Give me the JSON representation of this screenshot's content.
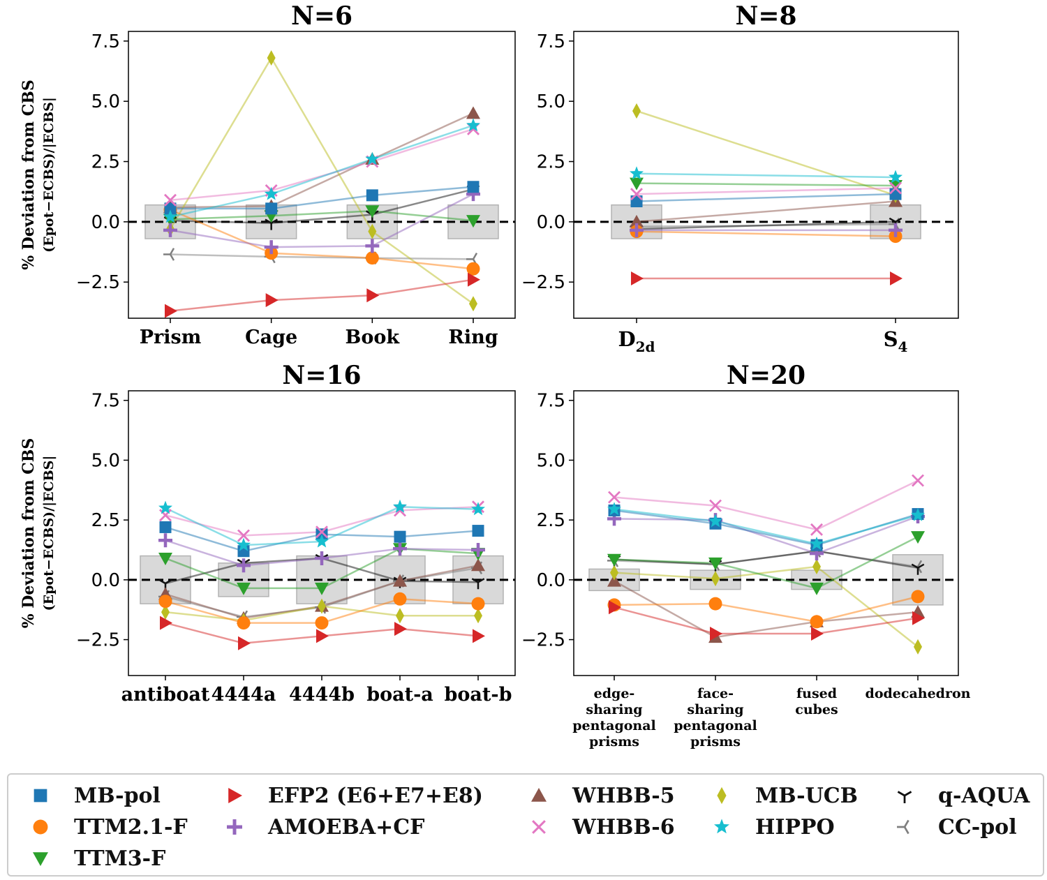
{
  "chart_data": [
    {
      "type": "line",
      "title": "N=6",
      "ylabel": "% Deviation from CBS",
      "ylabel2": "(Epot−ECBS)/|ECBS|",
      "ylim": [
        -4.0,
        7.9
      ],
      "yticks": [
        -2.5,
        0.0,
        2.5,
        5.0,
        7.5
      ],
      "ytick_labels": [
        "−2.5",
        "0.0",
        "2.5",
        "5.0",
        "7.5"
      ],
      "categories": [
        "Prism",
        "Cage",
        "Book",
        "Ring"
      ],
      "band_halfwidth": [
        0.7,
        0.7,
        0.7,
        0.7
      ],
      "series": [
        {
          "name": "MB-pol",
          "values": [
            0.55,
            0.55,
            1.1,
            1.45
          ]
        },
        {
          "name": "TTM2.1-F",
          "values": [
            0.5,
            -1.3,
            -1.5,
            -1.95
          ]
        },
        {
          "name": "TTM3-F",
          "values": [
            0.1,
            0.25,
            0.45,
            0.05
          ]
        },
        {
          "name": "EFP2 (E6+E7+E8)",
          "values": [
            -3.7,
            -3.25,
            -3.05,
            -2.4
          ]
        },
        {
          "name": "AMOEBA+CF",
          "values": [
            -0.35,
            -1.05,
            -1.0,
            1.15
          ]
        },
        {
          "name": "WHBB-5",
          "values": [
            0.6,
            0.65,
            2.6,
            4.5
          ]
        },
        {
          "name": "WHBB-6",
          "values": [
            0.9,
            1.3,
            2.5,
            3.85
          ]
        },
        {
          "name": "MB-UCB",
          "values": [
            -0.3,
            6.8,
            -0.4,
            -3.4
          ]
        },
        {
          "name": "HIPPO",
          "values": [
            0.2,
            1.15,
            2.6,
            4.0
          ]
        },
        {
          "name": "q-AQUA",
          "values": [
            0.05,
            -0.05,
            0.3,
            1.35
          ]
        },
        {
          "name": "CC-pol",
          "values": [
            -1.35,
            -1.45,
            -1.5,
            -1.55
          ]
        }
      ]
    },
    {
      "type": "line",
      "title": "N=8",
      "ylim": [
        -4.0,
        7.9
      ],
      "yticks": [
        -2.5,
        0.0,
        2.5,
        5.0,
        7.5
      ],
      "ytick_labels": [
        "−2.5",
        "0.0",
        "2.5",
        "5.0",
        "7.5"
      ],
      "categories": [
        "D2d",
        "S4"
      ],
      "category_subscripts": [
        "2d",
        "4"
      ],
      "band_halfwidth": [
        0.7,
        0.7
      ],
      "series": [
        {
          "name": "MB-pol",
          "values": [
            0.85,
            1.15
          ]
        },
        {
          "name": "TTM2.1-F",
          "values": [
            -0.4,
            -0.6
          ]
        },
        {
          "name": "TTM3-F",
          "values": [
            1.6,
            1.5
          ]
        },
        {
          "name": "EFP2 (E6+E7+E8)",
          "values": [
            -2.35,
            -2.35
          ]
        },
        {
          "name": "AMOEBA+CF",
          "values": [
            -0.35,
            -0.35
          ]
        },
        {
          "name": "WHBB-5",
          "values": [
            0.0,
            0.85
          ]
        },
        {
          "name": "WHBB-6",
          "values": [
            1.15,
            1.4
          ]
        },
        {
          "name": "MB-UCB",
          "values": [
            4.6,
            1.1
          ]
        },
        {
          "name": "HIPPO",
          "values": [
            2.0,
            1.85
          ]
        },
        {
          "name": "q-AQUA",
          "values": [
            -0.3,
            0.0
          ]
        },
        {
          "name": "CC-pol",
          "values": [
            -0.2,
            -0.1
          ]
        }
      ]
    },
    {
      "type": "line",
      "title": "N=16",
      "ylabel": "% Deviation from CBS",
      "ylabel2": "(Epot−ECBS)/|ECBS|",
      "ylim": [
        -4.0,
        7.9
      ],
      "yticks": [
        -2.5,
        0.0,
        2.5,
        5.0,
        7.5
      ],
      "ytick_labels": [
        "−2.5",
        "0.0",
        "2.5",
        "5.0",
        "7.5"
      ],
      "categories": [
        "antiboat",
        "4444a",
        "4444b",
        "boat-a",
        "boat-b"
      ],
      "band_halfwidth": [
        1.0,
        0.7,
        1.0,
        1.0,
        1.0
      ],
      "series": [
        {
          "name": "MB-pol",
          "values": [
            2.2,
            1.2,
            1.9,
            1.8,
            2.05
          ]
        },
        {
          "name": "TTM2.1-F",
          "values": [
            -0.9,
            -1.8,
            -1.8,
            -0.8,
            -1.0
          ]
        },
        {
          "name": "TTM3-F",
          "values": [
            0.9,
            -0.35,
            -0.35,
            1.3,
            1.1
          ]
        },
        {
          "name": "EFP2 (E6+E7+E8)",
          "values": [
            -1.8,
            -2.65,
            -2.35,
            -2.05,
            -2.35
          ]
        },
        {
          "name": "AMOEBA+CF",
          "values": [
            1.65,
            0.6,
            0.9,
            1.3,
            1.25
          ]
        },
        {
          "name": "WHBB-5",
          "values": [
            -0.6,
            -1.6,
            -1.1,
            -0.05,
            0.6
          ]
        },
        {
          "name": "WHBB-6",
          "values": [
            2.7,
            1.85,
            2.0,
            2.9,
            3.05
          ]
        },
        {
          "name": "MB-UCB",
          "values": [
            -1.35,
            -1.7,
            -1.1,
            -1.5,
            -1.5
          ]
        },
        {
          "name": "HIPPO",
          "values": [
            3.0,
            1.45,
            1.6,
            3.05,
            2.95
          ]
        },
        {
          "name": "q-AQUA",
          "values": [
            -0.15,
            0.7,
            0.9,
            -0.05,
            -0.1
          ]
        },
        {
          "name": "CC-pol",
          "values": [
            -0.7,
            -1.55,
            -1.15,
            -0.05,
            0.5
          ]
        }
      ]
    },
    {
      "type": "line",
      "title": "N=20",
      "ylim": [
        -4.0,
        7.9
      ],
      "yticks": [
        -2.5,
        0.0,
        2.5,
        5.0,
        7.5
      ],
      "ytick_labels": [
        "−2.5",
        "0.0",
        "2.5",
        "5.0",
        "7.5"
      ],
      "categories": [
        "edge-sharing pentagonal prisms",
        "face-sharing pentagonal prisms",
        "fused cubes",
        "dodecahedron"
      ],
      "category_lines": [
        [
          "edge-",
          "sharing",
          "pentagonal",
          "prisms"
        ],
        [
          "face-",
          "sharing",
          "pentagonal",
          "prisms"
        ],
        [
          "fused",
          "cubes"
        ],
        [
          "dodecahedron"
        ]
      ],
      "band_halfwidth": [
        0.45,
        0.4,
        0.4,
        1.05
      ],
      "series": [
        {
          "name": "MB-pol",
          "values": [
            2.9,
            2.35,
            1.45,
            2.75
          ]
        },
        {
          "name": "TTM2.1-F",
          "values": [
            -1.05,
            -1.0,
            -1.75,
            -0.7
          ]
        },
        {
          "name": "TTM3-F",
          "values": [
            0.85,
            0.7,
            -0.35,
            1.8
          ]
        },
        {
          "name": "EFP2 (E6+E7+E8)",
          "values": [
            -1.15,
            -2.25,
            -2.25,
            -1.6
          ]
        },
        {
          "name": "AMOEBA+CF",
          "values": [
            2.55,
            2.5,
            1.1,
            2.65
          ]
        },
        {
          "name": "WHBB-5",
          "values": [
            -0.05,
            -2.4,
            -1.75,
            -1.35
          ]
        },
        {
          "name": "WHBB-6",
          "values": [
            3.45,
            3.1,
            2.1,
            4.15
          ]
        },
        {
          "name": "MB-UCB",
          "values": [
            0.3,
            0.05,
            0.55,
            -2.8
          ]
        },
        {
          "name": "HIPPO",
          "values": [
            2.95,
            2.45,
            1.5,
            2.7
          ]
        },
        {
          "name": "q-AQUA",
          "values": [
            0.85,
            0.65,
            1.2,
            0.5
          ]
        },
        {
          "name": "CC-pol",
          "values": [
            0.8,
            0.65,
            1.2,
            0.55
          ]
        }
      ]
    }
  ],
  "series_styles": [
    {
      "name": "MB-pol",
      "color": "#1f77b4",
      "marker": "square"
    },
    {
      "name": "TTM2.1-F",
      "color": "#ff7f0e",
      "marker": "circle"
    },
    {
      "name": "TTM3-F",
      "color": "#2ca02c",
      "marker": "triangle-down"
    },
    {
      "name": "EFP2 (E6+E7+E8)",
      "color": "#d62728",
      "marker": "triangle-right"
    },
    {
      "name": "AMOEBA+CF",
      "color": "#9467bd",
      "marker": "plus"
    },
    {
      "name": "WHBB-5",
      "color": "#8c564b",
      "marker": "triangle-up"
    },
    {
      "name": "WHBB-6",
      "color": "#e377c2",
      "marker": "x"
    },
    {
      "name": "MB-UCB",
      "color": "#bcbd22",
      "marker": "diamond"
    },
    {
      "name": "HIPPO",
      "color": "#17becf",
      "marker": "star"
    },
    {
      "name": "q-AQUA",
      "color": "#111111",
      "marker": "tri-down"
    },
    {
      "name": "CC-pol",
      "color": "#7f7f7f",
      "marker": "tri-left"
    }
  ],
  "legend": {
    "entries": [
      "MB-pol",
      "TTM2.1-F",
      "TTM3-F",
      "EFP2 (E6+E7+E8)",
      "AMOEBA+CF",
      "WHBB-5",
      "WHBB-6",
      "MB-UCB",
      "HIPPO",
      "q-AQUA",
      "CC-pol"
    ],
    "placement": "bottom"
  }
}
